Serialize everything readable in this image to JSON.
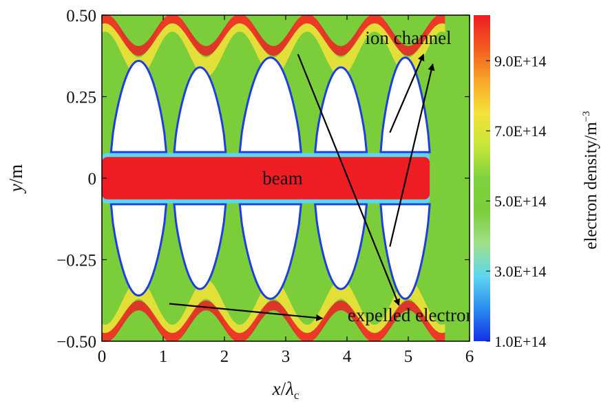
{
  "chart_data": {
    "type": "heatmap",
    "title": "",
    "xlabel": {
      "var": "x",
      "slash": "/",
      "lambda": "λ",
      "sub": "c"
    },
    "ylabel": {
      "var": "y",
      "unit": "/m"
    },
    "xlim": [
      0,
      6
    ],
    "ylim": [
      -0.5,
      0.5
    ],
    "x_ticks": [
      {
        "value": 0,
        "label": "0"
      },
      {
        "value": 1,
        "label": "1"
      },
      {
        "value": 2,
        "label": "2"
      },
      {
        "value": 3,
        "label": "3"
      },
      {
        "value": 4,
        "label": "4"
      },
      {
        "value": 5,
        "label": "5"
      },
      {
        "value": 6,
        "label": "6"
      }
    ],
    "y_ticks": [
      {
        "value": 0.5,
        "label": "0.50"
      },
      {
        "value": 0.25,
        "label": "0.25"
      },
      {
        "value": 0,
        "label": "0"
      },
      {
        "value": -0.25,
        "label": "−0.25"
      },
      {
        "value": -0.5,
        "label": "−0.50"
      }
    ],
    "colorbar": {
      "label": "electron density/m",
      "label_exp": "−3",
      "range": [
        100000000000000.0,
        1030000000000000.0
      ],
      "ticks": [
        {
          "value": 100000000000000.0,
          "label": "1.0E+14"
        },
        {
          "value": 300000000000000.0,
          "label": "3.0E+14"
        },
        {
          "value": 500000000000000.0,
          "label": "5.0E+14"
        },
        {
          "value": 700000000000000.0,
          "label": "7.0E+14"
        },
        {
          "value": 900000000000000.0,
          "label": "9.0E+14"
        }
      ],
      "colors": [
        "#1530e8",
        "#2a8cf0",
        "#5fd6ee",
        "#9fe08a",
        "#7ccd3a",
        "#7fd23c",
        "#c8e63a",
        "#f5e23a",
        "#f7a528",
        "#f25a1e",
        "#ee1d24"
      ]
    },
    "background_density": 600000000000000.0,
    "beam": {
      "x_start": 0,
      "x_end": 5.35,
      "y_half_width": 0.065,
      "density": 1030000000000000.0
    },
    "ion_cavities": [
      {
        "x_center": 0.6,
        "x_half_width": 0.45,
        "y_inner": 0.08,
        "y_peak": 0.36
      },
      {
        "x_center": 1.6,
        "x_half_width": 0.42,
        "y_inner": 0.08,
        "y_peak": 0.34
      },
      {
        "x_center": 2.75,
        "x_half_width": 0.5,
        "y_inner": 0.08,
        "y_peak": 0.37
      },
      {
        "x_center": 3.9,
        "x_half_width": 0.42,
        "y_inner": 0.08,
        "y_peak": 0.34
      },
      {
        "x_center": 4.95,
        "x_half_width": 0.4,
        "y_inner": 0.08,
        "y_peak": 0.37
      }
    ],
    "annotations": [
      {
        "text": "ion channel",
        "x": 5.0,
        "y": 0.43,
        "arrows": [
          {
            "from": [
              4.7,
              0.14
            ],
            "to": [
              5.25,
              0.38
            ]
          },
          {
            "from": [
              4.7,
              -0.21
            ],
            "to": [
              5.4,
              0.35
            ]
          }
        ]
      },
      {
        "text": "beam",
        "x": 2.95,
        "y": 0.0,
        "arrows": []
      },
      {
        "text": "expelled electron",
        "x": 5.05,
        "y": -0.42,
        "arrows": [
          {
            "from": [
              3.2,
              0.38
            ],
            "to": [
              4.85,
              -0.39
            ]
          },
          {
            "from": [
              1.1,
              -0.385
            ],
            "to": [
              3.6,
              -0.43
            ]
          }
        ]
      }
    ]
  }
}
